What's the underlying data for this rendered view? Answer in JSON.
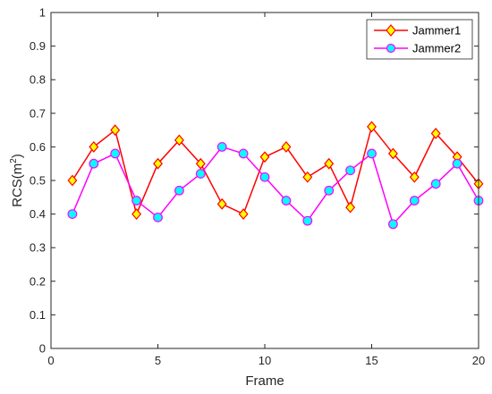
{
  "chart_data": {
    "type": "line",
    "xlabel": "Frame",
    "ylabel": "RCS(m",
    "ylabel_sup": "2",
    "ylabel_end": ")",
    "xlim": [
      0,
      20
    ],
    "ylim": [
      0,
      1
    ],
    "xticks": [
      "0",
      "5",
      "10",
      "15",
      "20"
    ],
    "yticks": [
      "0",
      "0.1",
      "0.2",
      "0.3",
      "0.4",
      "0.5",
      "0.6",
      "0.7",
      "0.8",
      "0.9",
      "1"
    ],
    "x": [
      1,
      2,
      3,
      4,
      5,
      6,
      7,
      8,
      9,
      10,
      11,
      12,
      13,
      14,
      15,
      16,
      17,
      18,
      19,
      20
    ],
    "grid": false,
    "legend_position": "top-right",
    "series": [
      {
        "name": "Jammer1",
        "color": "#ff0000",
        "marker": "diamond",
        "marker_fill": "#ffff00",
        "values": [
          0.5,
          0.6,
          0.65,
          0.4,
          0.55,
          0.62,
          0.55,
          0.43,
          0.4,
          0.57,
          0.6,
          0.51,
          0.55,
          0.42,
          0.66,
          0.58,
          0.51,
          0.64,
          0.57,
          0.49
        ]
      },
      {
        "name": "Jammer2",
        "color": "#ff00ff",
        "marker": "circle",
        "marker_fill": "#00ffff",
        "values": [
          0.4,
          0.55,
          0.58,
          0.44,
          0.39,
          0.47,
          0.52,
          0.6,
          0.58,
          0.51,
          0.44,
          0.38,
          0.47,
          0.53,
          0.58,
          0.37,
          0.44,
          0.49,
          0.55,
          0.44
        ]
      }
    ]
  }
}
